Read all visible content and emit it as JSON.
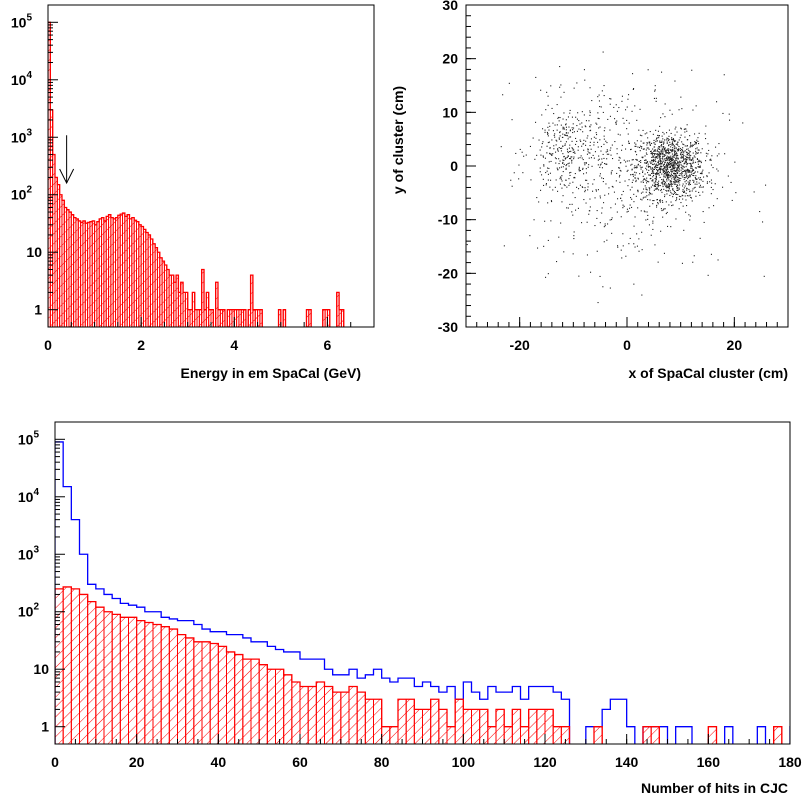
{
  "colors": {
    "red": "#ff0000",
    "blue": "#0000ff",
    "black": "#000000"
  },
  "chart_data": [
    {
      "id": "energy",
      "type": "histogram",
      "xlabel": "Energy in em SpaCal (GeV)",
      "ylabel": "",
      "xlim": [
        0,
        7
      ],
      "ylim": [
        0.5,
        200000
      ],
      "log_y": true,
      "x_ticks": [
        0,
        2,
        4,
        6
      ],
      "y_ticks": [
        {
          "v": 1,
          "base": "1",
          "exp": ""
        },
        {
          "v": 10,
          "base": "10",
          "exp": ""
        },
        {
          "v": 100,
          "base": "10",
          "exp": "2"
        },
        {
          "v": 1000,
          "base": "10",
          "exp": "3"
        },
        {
          "v": 10000,
          "base": "10",
          "exp": "4"
        },
        {
          "v": 100000,
          "base": "10",
          "exp": "5"
        }
      ],
      "cut_arrow_x": 0.4,
      "bin_width": 0.05,
      "series": [
        {
          "color": "red",
          "hatched": true,
          "values": [
            100000,
            3000,
            500,
            200,
            150,
            100,
            80,
            60,
            55,
            50,
            45,
            40,
            38,
            35,
            33,
            35,
            32,
            33,
            34,
            35,
            30,
            34,
            38,
            40,
            35,
            42,
            45,
            40,
            38,
            40,
            44,
            46,
            48,
            42,
            45,
            38,
            40,
            36,
            34,
            30,
            28,
            25,
            22,
            20,
            17,
            14,
            12,
            10,
            8,
            7,
            6,
            5,
            4,
            4,
            3,
            4,
            2,
            3,
            2,
            2,
            1,
            1,
            2,
            1,
            1,
            1,
            5,
            1,
            2,
            1,
            1,
            0,
            3,
            1,
            1,
            1,
            0,
            1,
            1,
            1,
            1,
            1,
            1,
            1,
            1,
            0,
            1,
            4,
            1,
            1,
            1,
            1,
            0,
            0,
            0,
            0,
            0,
            0,
            0,
            1,
            0,
            1,
            0,
            0,
            0,
            0,
            0,
            0,
            0,
            0,
            0,
            1,
            1,
            0,
            0,
            0,
            0,
            0,
            1,
            1,
            1,
            0,
            0,
            0,
            2,
            1,
            1,
            0,
            0,
            0,
            0
          ]
        }
      ]
    },
    {
      "id": "position",
      "type": "scatter",
      "xlabel": "x of SpaCal cluster (cm)",
      "ylabel": "y of cluster (cm)",
      "xlim": [
        -30,
        30
      ],
      "ylim": [
        -30,
        30
      ],
      "x_ticks": [
        -20,
        0,
        20
      ],
      "y_ticks": [
        -30,
        -20,
        -10,
        0,
        10,
        20,
        30
      ],
      "clusters": [
        {
          "cx": 8,
          "cy": 0,
          "sx": 3.2,
          "sy": 3.0,
          "n": 1100
        },
        {
          "cx": -11,
          "cy": 3,
          "sx": 3.5,
          "sy": 4.5,
          "n": 320
        },
        {
          "cx": 0,
          "cy": -1,
          "sx": 9,
          "sy": 9,
          "n": 520
        }
      ]
    },
    {
      "id": "hits",
      "type": "histogram",
      "xlabel": "Number of hits in CJC",
      "ylabel": "",
      "xlim": [
        0,
        180
      ],
      "ylim": [
        0.5,
        200000
      ],
      "log_y": true,
      "x_ticks": [
        0,
        20,
        40,
        60,
        80,
        100,
        120,
        140,
        160,
        180
      ],
      "y_ticks": [
        {
          "v": 1,
          "base": "1",
          "exp": ""
        },
        {
          "v": 10,
          "base": "10",
          "exp": ""
        },
        {
          "v": 100,
          "base": "10",
          "exp": "2"
        },
        {
          "v": 1000,
          "base": "10",
          "exp": "3"
        },
        {
          "v": 10000,
          "base": "10",
          "exp": "4"
        },
        {
          "v": 100000,
          "base": "10",
          "exp": "5"
        }
      ],
      "bin_width": 2,
      "series": [
        {
          "color": "blue",
          "hatched": false,
          "values": [
            90000,
            15000,
            4000,
            1000,
            300,
            250,
            200,
            170,
            140,
            130,
            120,
            100,
            100,
            80,
            75,
            70,
            70,
            60,
            50,
            45,
            45,
            40,
            40,
            35,
            30,
            30,
            25,
            22,
            20,
            20,
            15,
            15,
            15,
            10,
            8,
            8,
            10,
            7,
            8,
            10,
            7,
            6,
            7,
            7,
            5,
            6,
            5,
            4,
            5,
            3,
            6,
            4,
            3,
            5,
            4,
            4,
            5,
            3,
            5,
            5,
            5,
            4,
            3,
            0,
            0,
            1,
            1,
            2,
            3,
            3,
            1,
            0,
            1,
            1,
            1,
            0,
            1,
            1,
            0,
            0,
            0,
            0,
            1,
            0,
            0,
            0,
            1,
            0,
            0,
            0,
            1,
            0,
            0,
            1,
            0,
            0,
            0,
            0,
            1,
            0,
            0,
            0,
            1,
            0,
            0,
            0,
            0,
            0,
            0,
            0,
            0,
            0,
            0,
            0,
            0,
            0,
            0,
            0,
            0,
            0
          ]
        },
        {
          "color": "red",
          "hatched": true,
          "values": [
            250,
            270,
            250,
            200,
            150,
            120,
            100,
            90,
            80,
            80,
            70,
            65,
            60,
            55,
            50,
            40,
            35,
            30,
            30,
            28,
            25,
            20,
            18,
            15,
            15,
            12,
            10,
            10,
            8,
            6,
            5,
            5,
            6,
            5,
            4,
            4,
            5,
            4,
            3,
            3,
            1,
            1,
            3,
            3,
            2,
            2,
            3,
            2,
            1,
            3,
            2,
            2,
            2,
            1,
            2,
            1,
            2,
            1,
            2,
            2,
            2,
            1,
            1,
            0,
            0,
            0,
            1,
            0,
            0,
            0,
            0,
            0,
            1,
            1,
            0,
            0,
            0,
            0,
            0,
            0,
            1,
            0,
            0,
            0,
            0,
            0,
            0,
            0,
            1,
            0,
            0,
            0,
            0,
            1,
            0,
            0,
            0,
            0,
            0,
            0,
            0,
            0,
            0,
            0,
            0,
            1,
            0,
            0,
            0,
            0,
            0,
            0,
            0,
            0,
            0,
            0,
            0,
            0,
            0,
            0
          ]
        }
      ]
    }
  ]
}
